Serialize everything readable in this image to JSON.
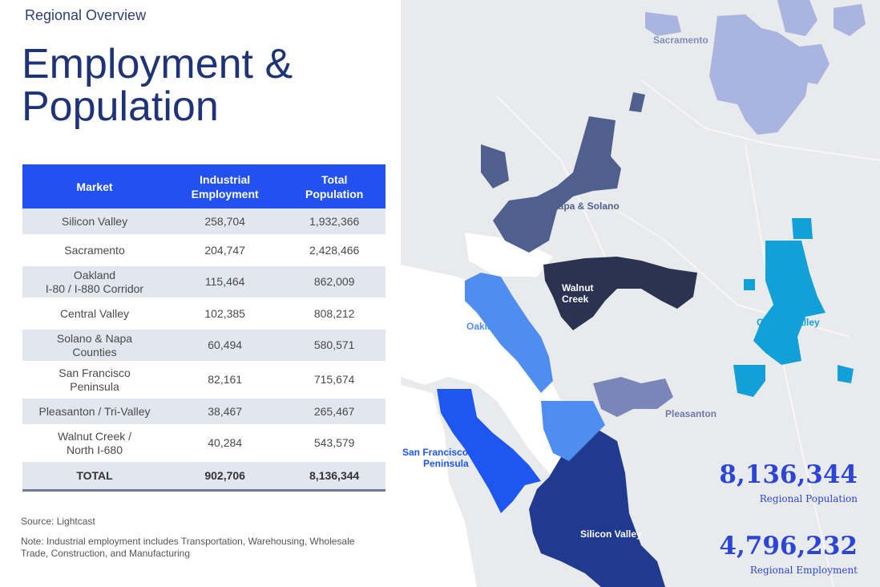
{
  "header": {
    "eyebrow": "Regional Overview",
    "title_line1": "Employment &",
    "title_line2": "Population"
  },
  "table": {
    "columns": [
      {
        "line1": "Market",
        "line2": ""
      },
      {
        "line1": "Industrial",
        "line2": "Employment"
      },
      {
        "line1": "Total",
        "line2": "Population"
      }
    ],
    "rows": [
      {
        "market_line1": "Silicon Valley",
        "market_line2": "",
        "employment": "258,704",
        "population": "1,932,366"
      },
      {
        "market_line1": "Sacramento",
        "market_line2": "",
        "employment": "204,747",
        "population": "2,428,466"
      },
      {
        "market_line1": "Oakland",
        "market_line2": "I-80 / I-880 Corridor",
        "employment": "115,464",
        "population": "862,009"
      },
      {
        "market_line1": "Central Valley",
        "market_line2": "",
        "employment": "102,385",
        "population": "808,212"
      },
      {
        "market_line1": "Solano & Napa",
        "market_line2": "Counties",
        "employment": "60,494",
        "population": "580,571"
      },
      {
        "market_line1": "San Francisco",
        "market_line2": "Peninsula",
        "employment": "82,161",
        "population": "715,674"
      },
      {
        "market_line1": "Pleasanton / Tri-Valley",
        "market_line2": "",
        "employment": "38,467",
        "population": "265,467"
      },
      {
        "market_line1": "Walnut Creek /",
        "market_line2": "North I-680",
        "employment": "40,284",
        "population": "543,579"
      }
    ],
    "total": {
      "label": "TOTAL",
      "employment": "902,706",
      "population": "8,136,344"
    }
  },
  "footer": {
    "source": "Source: Lightcast",
    "note": "Note: Industrial employment includes Transportation, Warehousing, Wholesale Trade, Construction, and Manufacturing"
  },
  "map": {
    "labels": {
      "sacramento": "Sacramento",
      "napa_solano": "Napa & Solano",
      "walnut_creek_1": "Walnut",
      "walnut_creek_2": "Creek",
      "oakland": "Oakland",
      "central_valley": "Central Valley",
      "pleasanton": "Pleasanton",
      "sf_peninsula_1": "San Francisco",
      "sf_peninsula_2": "Peninsula",
      "silicon_valley": "Silicon Valley"
    },
    "colors": {
      "sacramento": "#a9b4e0",
      "napa_solano": "#4f5f8e",
      "walnut_creek": "#2a3352",
      "oakland": "#4f8ef0",
      "central_valley": "#12a0d8",
      "pleasanton": "#7a85b8",
      "sf_peninsula": "#1e57f0",
      "silicon_valley": "#1f3a8f",
      "bay_white": "#ffffff",
      "land": "#e9eaec"
    }
  },
  "stats": {
    "population_value": "8,136,344",
    "population_label": "Regional Population",
    "employment_value": "4,796,232",
    "employment_label": "Regional Employment"
  }
}
